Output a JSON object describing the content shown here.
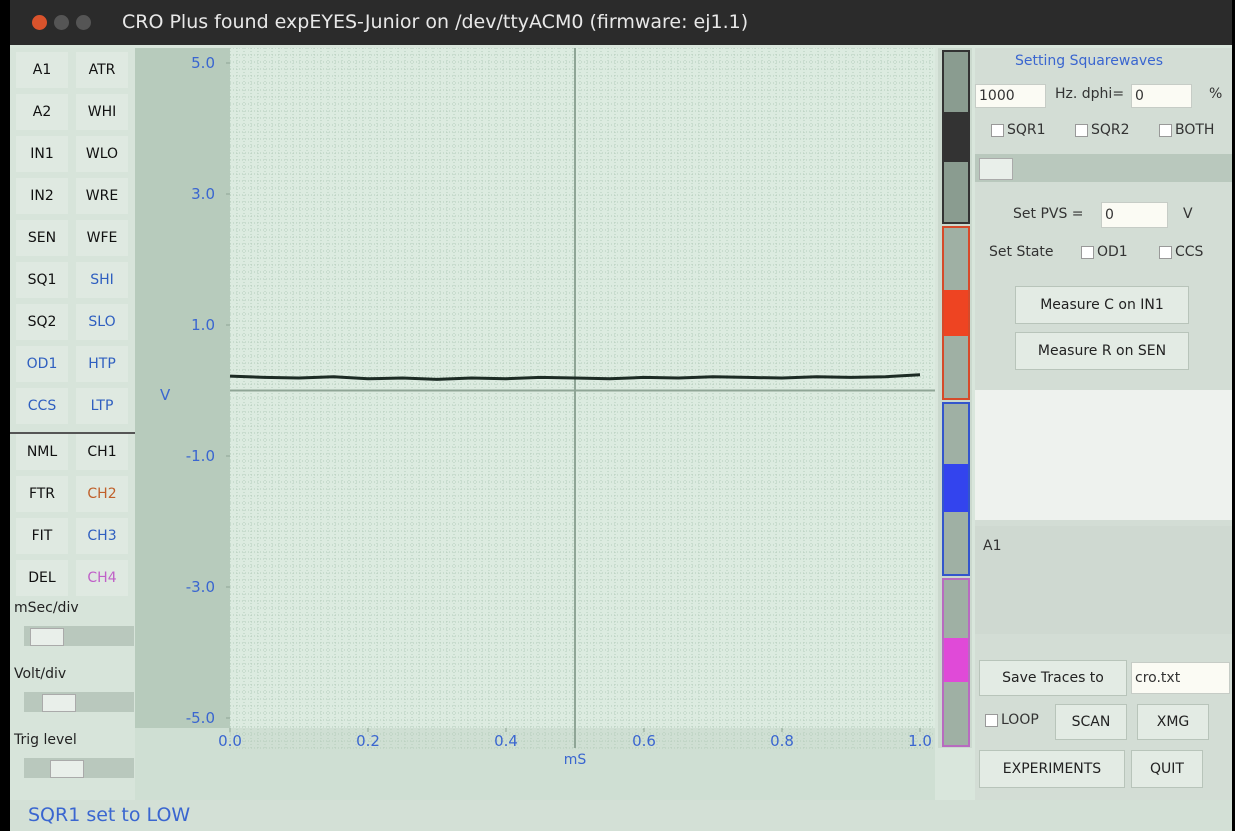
{
  "window": {
    "title": "CRO Plus found expEYES-Junior on /dev/ttyACM0 (firmware: ej1.1)"
  },
  "left_panel": {
    "buttons": [
      [
        "A1",
        "ATR"
      ],
      [
        "A2",
        "WHI"
      ],
      [
        "IN1",
        "WLO"
      ],
      [
        "IN2",
        "WRE"
      ],
      [
        "SEN",
        "WFE"
      ],
      [
        "SQ1",
        "SHI"
      ],
      [
        "SQ2",
        "SLO"
      ],
      [
        "OD1",
        "HTP"
      ],
      [
        "CCS",
        "LTP"
      ]
    ],
    "channel_buttons": [
      [
        "NML",
        "CH1"
      ],
      [
        "FTR",
        "CH2"
      ],
      [
        "FIT",
        "CH3"
      ],
      [
        "DEL",
        "CH4"
      ]
    ],
    "controls": [
      "mSec/div",
      "Volt/div",
      "Trig level"
    ]
  },
  "plot": {
    "type": "line",
    "y_label": "V",
    "x_label": "mS",
    "xlim": [
      0,
      1
    ],
    "ylim": [
      -5,
      5
    ],
    "xticks": [
      {
        "value": 0,
        "label": "0.0"
      },
      0.2,
      0.4,
      0.6,
      0.8,
      {
        "value": 1,
        "label": "1.0"
      }
    ],
    "yticks": [
      {
        "value": 5,
        "label": "5.0"
      },
      {
        "value": 3,
        "label": "3.0"
      },
      {
        "value": 1,
        "label": "1.0"
      },
      {
        "value": -1,
        "label": "-1.0"
      },
      {
        "value": -3,
        "label": "-3.0"
      },
      {
        "value": -5,
        "label": "-5.0"
      }
    ],
    "x": [
      0,
      0.05,
      0.1,
      0.15,
      0.2,
      0.25,
      0.3,
      0.35,
      0.4,
      0.45,
      0.5,
      0.55,
      0.6,
      0.65,
      0.7,
      0.75,
      0.8,
      0.85,
      0.9,
      0.95,
      1
    ],
    "values": [
      0.22,
      0.2,
      0.19,
      0.21,
      0.18,
      0.19,
      0.17,
      0.19,
      0.18,
      0.2,
      0.19,
      0.18,
      0.2,
      0.19,
      0.21,
      0.2,
      0.19,
      0.21,
      0.2,
      0.21,
      0.24
    ],
    "color": "#1c2b24"
  },
  "right_panel": {
    "heading": "Setting Squarewaves",
    "frequency": "1000",
    "freq_unit": "Hz. dphi=",
    "dphi": "0",
    "dphi_unit": "%",
    "checkboxes": [
      "SQR1",
      "SQR2",
      "BOTH"
    ],
    "pvs_label": "Set PVS =",
    "pvs": "0",
    "pvs_unit": "V",
    "state_label": "Set State",
    "state_checkboxes": [
      "OD1",
      "CCS"
    ],
    "measure_buttons": [
      "Measure C on IN1",
      "Measure R on SEN"
    ],
    "result": "A1",
    "save_label": "Save Traces to",
    "save_file": "cro.txt",
    "loop": "LOOP",
    "buttons": [
      "SCAN",
      "XMG",
      "EXPERIMENTS",
      "QUIT"
    ]
  },
  "status": "SQR1 set to LOW"
}
